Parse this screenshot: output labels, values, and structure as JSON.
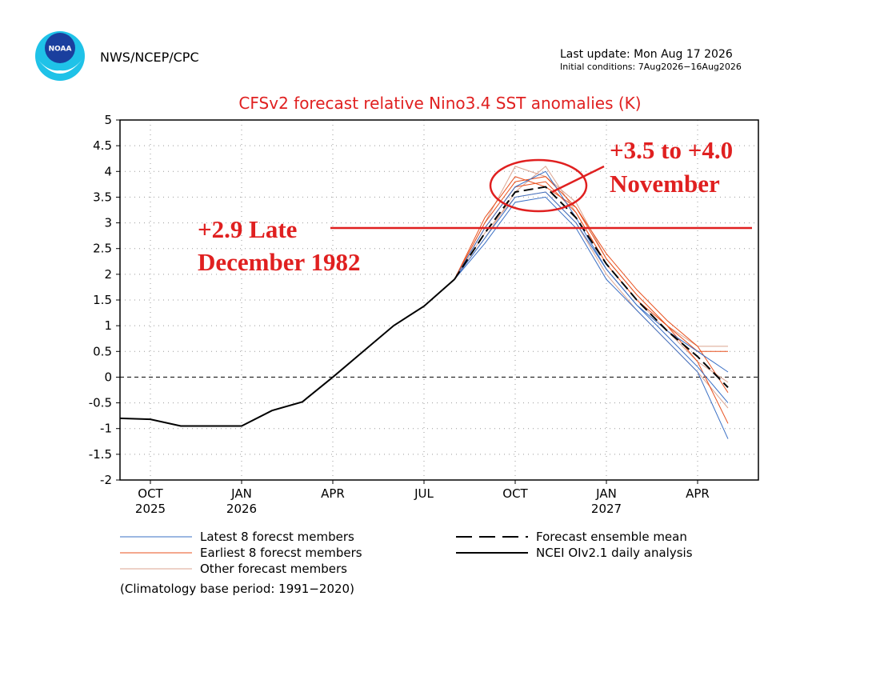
{
  "header": {
    "logo_text": "NOAA",
    "agency": "NWS/NCEP/CPC",
    "last_update": "Last update: Mon Aug 17 2026",
    "initial_conditions": "Initial conditions: 7Aug2026−16Aug2026"
  },
  "chart_data": {
    "type": "line",
    "title": "CFSv2 forecast relative Nino3.4 SST anomalies (K)",
    "xlim": [
      "2025-09",
      "2027-06"
    ],
    "xticks": [
      {
        "value": "2025-10",
        "label": "OCT",
        "year": "2025"
      },
      {
        "value": "2026-01",
        "label": "JAN",
        "year": "2026"
      },
      {
        "value": "2026-04",
        "label": "APR"
      },
      {
        "value": "2026-07",
        "label": "JUL"
      },
      {
        "value": "2026-10",
        "label": "OCT"
      },
      {
        "value": "2027-01",
        "label": "JAN",
        "year": "2027"
      },
      {
        "value": "2027-04",
        "label": "APR"
      }
    ],
    "ylim": [
      -2,
      5
    ],
    "yticks": [
      -2,
      -1.5,
      -1,
      -0.5,
      0,
      0.5,
      1,
      1.5,
      2,
      2.5,
      3,
      3.5,
      4,
      4.5,
      5
    ],
    "grid": true,
    "series": [
      {
        "name": "Latest 8 forecst members",
        "color": "#3a6fc4",
        "x": [
          "2026-08",
          "2026-09",
          "2026-10",
          "2026-11",
          "2026-12",
          "2027-01",
          "2027-02",
          "2027-03",
          "2027-04",
          "2027-05"
        ],
        "values": [
          [
            1.9,
            2.6,
            3.4,
            3.5,
            2.9,
            1.9,
            1.3,
            0.7,
            0.1,
            -1.2
          ],
          [
            1.9,
            2.7,
            3.5,
            3.6,
            3.0,
            2.1,
            1.4,
            0.8,
            0.2,
            -0.5
          ],
          [
            1.9,
            2.9,
            3.7,
            4.0,
            3.1,
            2.1,
            1.4,
            0.9,
            0.5,
            0.1
          ]
        ]
      },
      {
        "name": "Earliest 8 forecst members",
        "color": "#e8501e",
        "x": [
          "2026-08",
          "2026-09",
          "2026-10",
          "2026-11",
          "2026-12",
          "2027-01",
          "2027-02",
          "2027-03",
          "2027-04",
          "2027-05"
        ],
        "values": [
          [
            1.9,
            3.0,
            3.8,
            3.9,
            3.3,
            2.3,
            1.6,
            1.0,
            0.5,
            0.5
          ],
          [
            1.9,
            2.9,
            3.7,
            3.8,
            3.2,
            2.2,
            1.5,
            1.0,
            0.3,
            -0.9
          ],
          [
            1.9,
            3.1,
            3.9,
            3.7,
            3.3,
            2.4,
            1.7,
            1.1,
            0.6,
            -0.3
          ]
        ]
      },
      {
        "name": "Other forecast members",
        "color": "#dba38f",
        "x": [
          "2026-08",
          "2026-09",
          "2026-10",
          "2026-11",
          "2026-12",
          "2027-01",
          "2027-02",
          "2027-03",
          "2027-04",
          "2027-05"
        ],
        "values": [
          [
            1.9,
            3.0,
            4.1,
            3.9,
            3.4,
            2.3,
            1.6,
            1.0,
            0.6,
            0.6
          ],
          [
            1.9,
            2.8,
            3.5,
            3.6,
            3.0,
            2.0,
            1.3,
            0.7,
            0.1,
            -0.6
          ],
          [
            1.9,
            2.7,
            3.6,
            4.1,
            3.2,
            2.2,
            1.5,
            0.9,
            0.3,
            -0.1
          ]
        ]
      },
      {
        "name": "Forecast ensemble mean",
        "color": "#000000",
        "dash": true,
        "x": [
          "2026-08",
          "2026-09",
          "2026-10",
          "2026-11",
          "2026-12",
          "2027-01",
          "2027-02",
          "2027-03",
          "2027-04",
          "2027-05"
        ],
        "values": [
          1.9,
          2.8,
          3.6,
          3.7,
          3.1,
          2.2,
          1.5,
          0.9,
          0.4,
          -0.2
        ]
      },
      {
        "name": "NCEI OIv2.1 daily analysis",
        "color": "#000000",
        "x": [
          "2025-09",
          "2025-10",
          "2025-11",
          "2025-12",
          "2026-01",
          "2026-02",
          "2026-03",
          "2026-04",
          "2026-05",
          "2026-06",
          "2026-07",
          "2026-08"
        ],
        "values": [
          -0.8,
          -0.82,
          -0.95,
          -0.95,
          -0.95,
          -0.65,
          -0.48,
          0,
          0.5,
          1.0,
          1.38,
          1.9
        ]
      }
    ],
    "annotations": [
      {
        "text": "+3.5 to +4.0",
        "text2": "November"
      },
      {
        "text": "+2.9 Late",
        "text2": "December 1982",
        "value": 2.9
      }
    ],
    "footnote": "(Climatology base period: 1991−2020)"
  }
}
